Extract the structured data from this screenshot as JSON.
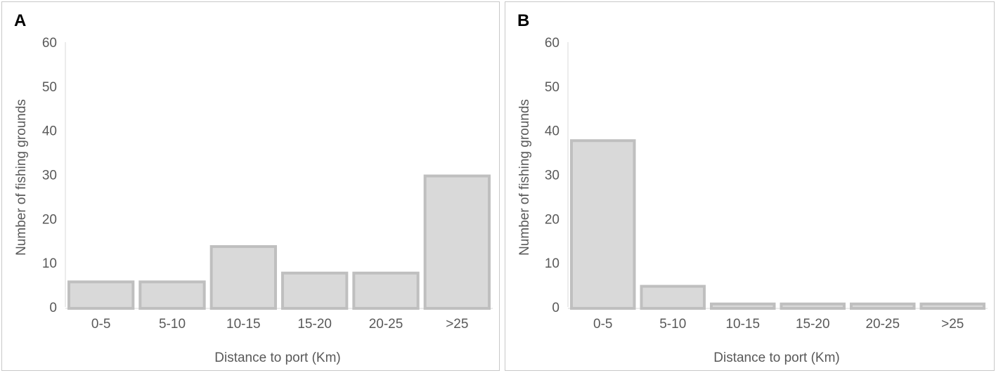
{
  "colors": {
    "bar_fill": "#d9d9d9",
    "bar_stroke": "#bfbfbf",
    "axis_line": "#d9d9d9",
    "text": "#595959"
  },
  "chart_data": [
    {
      "type": "bar",
      "panel_label": "A",
      "categories": [
        "0-5",
        "5-10",
        "10-15",
        "15-20",
        "20-25",
        ">25"
      ],
      "values": [
        6,
        6,
        14,
        8,
        8,
        30
      ],
      "title": "",
      "xlabel": "Distance to port (Km)",
      "ylabel": "Number of fishing grounds",
      "ylim": [
        0,
        60
      ],
      "yticks": [
        0,
        10,
        20,
        30,
        40,
        50,
        60
      ],
      "grid": false,
      "legend": "none"
    },
    {
      "type": "bar",
      "panel_label": "B",
      "categories": [
        "0-5",
        "5-10",
        "10-15",
        "15-20",
        "20-25",
        ">25"
      ],
      "values": [
        38,
        5,
        1,
        1,
        1,
        1
      ],
      "title": "",
      "xlabel": "Distance to port (Km)",
      "ylabel": "Number of fishing grounds",
      "ylim": [
        0,
        60
      ],
      "yticks": [
        0,
        10,
        20,
        30,
        40,
        50,
        60
      ],
      "grid": false,
      "legend": "none"
    }
  ]
}
